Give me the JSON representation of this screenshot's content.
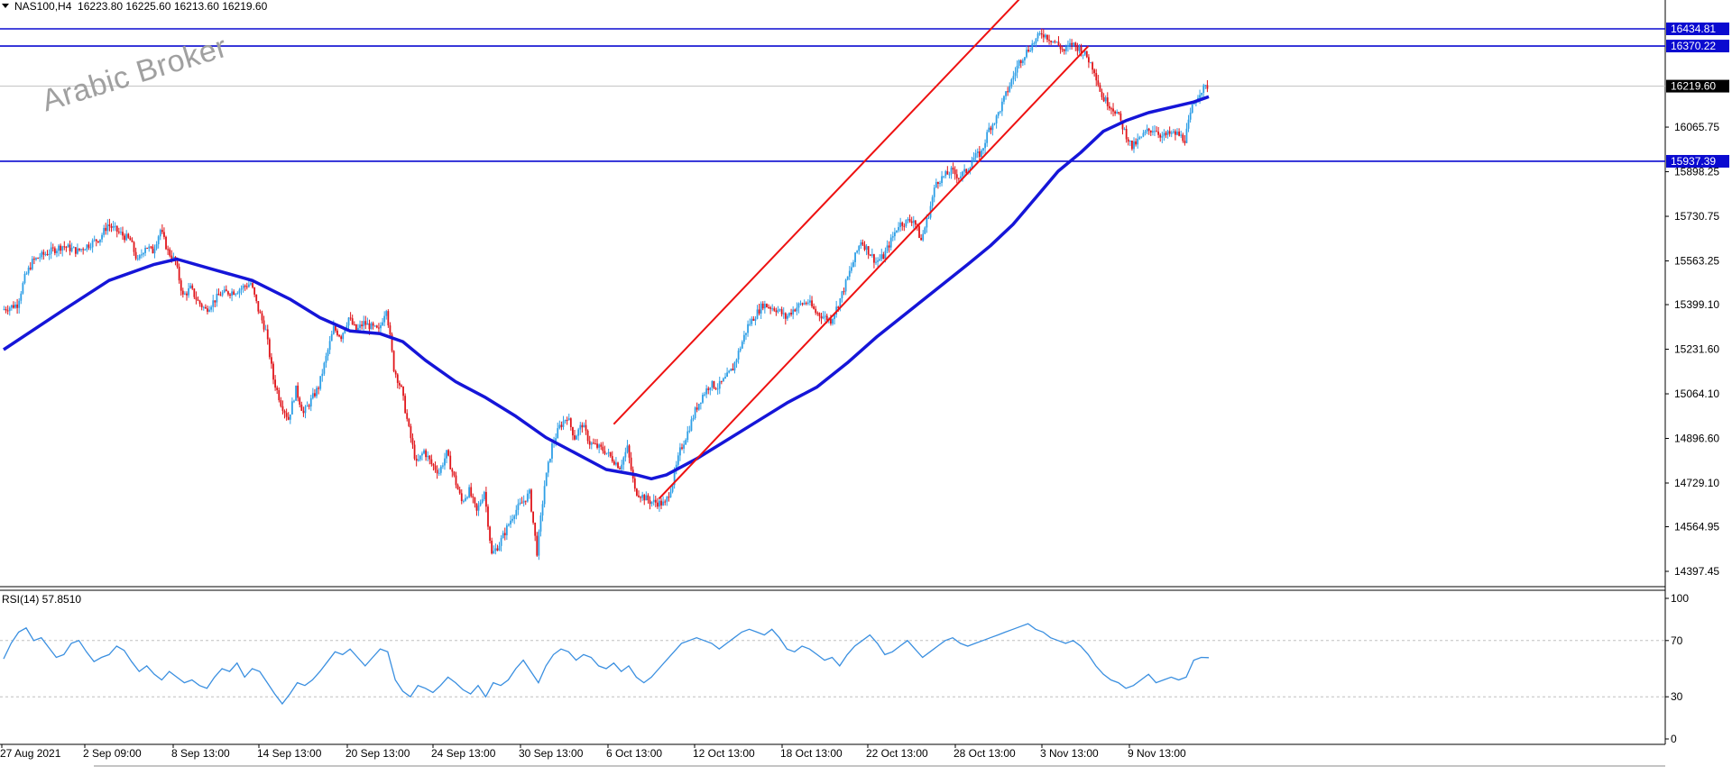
{
  "header": {
    "symbol": "NAS100,H4",
    "ohlc": "16223.80 16225.60 16213.60 16219.60"
  },
  "watermark": "Arabic Broker",
  "indicator": {
    "label": "RSI(14) 57.8510"
  },
  "colors": {
    "bull": "#2e9fe6",
    "bear": "#e0151a",
    "ma": "#1515d8",
    "channel": "#ee1111",
    "hline": "#0a0ad0",
    "rsi": "#3a8fe0"
  },
  "chart_data": [
    {
      "type": "candlestick",
      "symbol": "NAS100",
      "timeframe": "H4",
      "y_ticks": [
        16065.75,
        15898.25,
        15730.75,
        15563.25,
        15399.1,
        15231.6,
        15064.1,
        14896.6,
        14729.1,
        14564.95,
        14397.45
      ],
      "y_tick_labels": [
        "16065.75",
        "15898.25",
        "15730.75",
        "15563.25",
        "15399.10",
        "15231.60",
        "15064.10",
        "14896.60",
        "14729.10",
        "14564.95",
        "14397.45"
      ],
      "x_tick_labels": [
        "27 Aug 2021",
        "2 Sep 09:00",
        "8 Sep 13:00",
        "14 Sep 13:00",
        "20 Sep 13:00",
        "24 Sep 13:00",
        "30 Sep 13:00",
        "6 Oct 13:00",
        "12 Oct 13:00",
        "18 Oct 13:00",
        "22 Oct 13:00",
        "28 Oct 13:00",
        "3 Nov 13:00",
        "9 Nov 13:00"
      ],
      "price_path": [
        [
          0,
          15380
        ],
        [
          2,
          15400
        ],
        [
          3,
          15500
        ],
        [
          4,
          15560
        ],
        [
          5,
          15580
        ],
        [
          8,
          15620
        ],
        [
          10,
          15600
        ],
        [
          13,
          15650
        ],
        [
          14,
          15700
        ],
        [
          15,
          15680
        ],
        [
          17,
          15640
        ],
        [
          18,
          15560
        ],
        [
          19,
          15620
        ],
        [
          20,
          15600
        ],
        [
          21,
          15680
        ],
        [
          22,
          15600
        ],
        [
          23,
          15560
        ],
        [
          24,
          15430
        ],
        [
          25,
          15460
        ],
        [
          26,
          15410
        ],
        [
          27,
          15380
        ],
        [
          29,
          15440
        ],
        [
          31,
          15450
        ],
        [
          33,
          15480
        ],
        [
          34,
          15380
        ],
        [
          35,
          15300
        ],
        [
          36,
          15120
        ],
        [
          37,
          15030
        ],
        [
          38,
          14970
        ],
        [
          39,
          15080
        ],
        [
          40,
          14990
        ],
        [
          42,
          15090
        ],
        [
          43,
          15200
        ],
        [
          44,
          15310
        ],
        [
          45,
          15280
        ],
        [
          46,
          15350
        ],
        [
          47,
          15300
        ],
        [
          48,
          15330
        ],
        [
          50,
          15300
        ],
        [
          51,
          15390
        ],
        [
          52,
          15160
        ],
        [
          53,
          15080
        ],
        [
          54,
          14930
        ],
        [
          55,
          14800
        ],
        [
          56,
          14850
        ],
        [
          57,
          14800
        ],
        [
          58,
          14770
        ],
        [
          59,
          14840
        ],
        [
          60,
          14750
        ],
        [
          61,
          14660
        ],
        [
          62,
          14700
        ],
        [
          63,
          14620
        ],
        [
          64,
          14700
        ],
        [
          65,
          14460
        ],
        [
          66,
          14500
        ],
        [
          68,
          14620
        ],
        [
          70,
          14690
        ],
        [
          71,
          14470
        ],
        [
          72,
          14720
        ],
        [
          73,
          14870
        ],
        [
          74,
          14940
        ],
        [
          75,
          14980
        ],
        [
          76,
          14900
        ],
        [
          77,
          14950
        ],
        [
          78,
          14880
        ],
        [
          80,
          14850
        ],
        [
          82,
          14790
        ],
        [
          83,
          14860
        ],
        [
          84,
          14700
        ],
        [
          85,
          14680
        ],
        [
          86,
          14660
        ],
        [
          88,
          14650
        ],
        [
          89,
          14730
        ],
        [
          90,
          14850
        ],
        [
          91,
          14920
        ],
        [
          92,
          15000
        ],
        [
          93,
          15060
        ],
        [
          94,
          15100
        ],
        [
          95,
          15090
        ],
        [
          96,
          15120
        ],
        [
          97,
          15160
        ],
        [
          98,
          15240
        ],
        [
          99,
          15320
        ],
        [
          100,
          15360
        ],
        [
          101,
          15400
        ],
        [
          103,
          15380
        ],
        [
          104,
          15350
        ],
        [
          105,
          15380
        ],
        [
          106,
          15400
        ],
        [
          107,
          15410
        ],
        [
          108,
          15370
        ],
        [
          110,
          15340
        ],
        [
          111,
          15400
        ],
        [
          112,
          15480
        ],
        [
          113,
          15560
        ],
        [
          114,
          15640
        ],
        [
          115,
          15600
        ],
        [
          116,
          15560
        ],
        [
          117,
          15580
        ],
        [
          118,
          15640
        ],
        [
          119,
          15700
        ],
        [
          121,
          15720
        ],
        [
          122,
          15640
        ],
        [
          123,
          15740
        ],
        [
          124,
          15860
        ],
        [
          125,
          15880
        ],
        [
          126,
          15900
        ],
        [
          127,
          15880
        ],
        [
          128,
          15900
        ],
        [
          129,
          15950
        ],
        [
          130,
          15970
        ],
        [
          131,
          16060
        ],
        [
          132,
          16100
        ],
        [
          133,
          16170
        ],
        [
          134,
          16240
        ],
        [
          135,
          16310
        ],
        [
          136,
          16350
        ],
        [
          138,
          16420
        ],
        [
          139,
          16400
        ],
        [
          140,
          16380
        ],
        [
          141,
          16350
        ],
        [
          142,
          16380
        ],
        [
          143,
          16360
        ],
        [
          144,
          16330
        ],
        [
          145,
          16280
        ],
        [
          146,
          16180
        ],
        [
          147,
          16150
        ],
        [
          148,
          16120
        ],
        [
          149,
          16050
        ],
        [
          150,
          15990
        ],
        [
          151,
          16020
        ],
        [
          152,
          16050
        ],
        [
          153,
          16060
        ],
        [
          154,
          16030
        ],
        [
          155,
          16040
        ],
        [
          156,
          16040
        ],
        [
          157,
          16020
        ],
        [
          158,
          16140
        ],
        [
          159,
          16200
        ],
        [
          160,
          16219.6
        ]
      ],
      "moving_average": [
        [
          0,
          15230
        ],
        [
          8,
          15380
        ],
        [
          14,
          15490
        ],
        [
          20,
          15550
        ],
        [
          23,
          15570
        ],
        [
          28,
          15530
        ],
        [
          33,
          15490
        ],
        [
          38,
          15420
        ],
        [
          42,
          15350
        ],
        [
          46,
          15300
        ],
        [
          50,
          15290
        ],
        [
          53,
          15260
        ],
        [
          56,
          15190
        ],
        [
          60,
          15110
        ],
        [
          64,
          15050
        ],
        [
          68,
          14980
        ],
        [
          72,
          14900
        ],
        [
          76,
          14840
        ],
        [
          80,
          14780
        ],
        [
          84,
          14760
        ],
        [
          86,
          14745
        ],
        [
          88,
          14760
        ],
        [
          92,
          14820
        ],
        [
          96,
          14890
        ],
        [
          100,
          14960
        ],
        [
          104,
          15030
        ],
        [
          108,
          15090
        ],
        [
          112,
          15180
        ],
        [
          116,
          15280
        ],
        [
          120,
          15370
        ],
        [
          124,
          15460
        ],
        [
          128,
          15550
        ],
        [
          131,
          15620
        ],
        [
          134,
          15700
        ],
        [
          137,
          15800
        ],
        [
          140,
          15900
        ],
        [
          143,
          15970
        ],
        [
          146,
          16050
        ],
        [
          149,
          16090
        ],
        [
          152,
          16120
        ],
        [
          155,
          16140
        ],
        [
          158,
          16160
        ],
        [
          160,
          16180
        ]
      ],
      "horizontal_levels": [
        {
          "value": 16434.81,
          "label": "16434.81"
        },
        {
          "value": 16370.22,
          "label": "16370.22"
        },
        {
          "value": 15937.39,
          "label": "15937.39"
        }
      ],
      "current_price": {
        "value": 16219.6,
        "label": "16219.60"
      },
      "channel_lines": [
        {
          "from": [
            87,
            14670
          ],
          "to": [
            144,
            16370
          ]
        },
        {
          "from": [
            81,
            14950
          ],
          "to": [
            137,
            16610
          ]
        }
      ]
    },
    {
      "type": "line",
      "name": "RSI(14)",
      "last_value": 57.851,
      "y_ticks": [
        0,
        30,
        70,
        100
      ],
      "ylim": [
        0,
        100
      ],
      "levels": [
        30,
        70
      ],
      "values": [
        [
          0,
          57
        ],
        [
          1,
          68
        ],
        [
          2,
          76
        ],
        [
          3,
          79
        ],
        [
          4,
          70
        ],
        [
          5,
          72
        ],
        [
          6,
          65
        ],
        [
          7,
          58
        ],
        [
          8,
          60
        ],
        [
          9,
          68
        ],
        [
          10,
          70
        ],
        [
          11,
          62
        ],
        [
          12,
          55
        ],
        [
          13,
          58
        ],
        [
          14,
          60
        ],
        [
          15,
          66
        ],
        [
          16,
          63
        ],
        [
          17,
          55
        ],
        [
          18,
          48
        ],
        [
          19,
          52
        ],
        [
          20,
          46
        ],
        [
          21,
          42
        ],
        [
          22,
          48
        ],
        [
          23,
          44
        ],
        [
          24,
          40
        ],
        [
          25,
          42
        ],
        [
          26,
          38
        ],
        [
          27,
          36
        ],
        [
          28,
          44
        ],
        [
          29,
          50
        ],
        [
          30,
          48
        ],
        [
          31,
          54
        ],
        [
          32,
          44
        ],
        [
          33,
          50
        ],
        [
          34,
          48
        ],
        [
          35,
          40
        ],
        [
          36,
          32
        ],
        [
          37,
          25
        ],
        [
          38,
          32
        ],
        [
          39,
          40
        ],
        [
          40,
          38
        ],
        [
          41,
          42
        ],
        [
          42,
          48
        ],
        [
          43,
          55
        ],
        [
          44,
          62
        ],
        [
          45,
          60
        ],
        [
          46,
          64
        ],
        [
          47,
          58
        ],
        [
          48,
          52
        ],
        [
          49,
          58
        ],
        [
          50,
          64
        ],
        [
          51,
          62
        ],
        [
          52,
          42
        ],
        [
          53,
          34
        ],
        [
          54,
          30
        ],
        [
          55,
          38
        ],
        [
          56,
          36
        ],
        [
          57,
          33
        ],
        [
          58,
          38
        ],
        [
          59,
          44
        ],
        [
          60,
          40
        ],
        [
          61,
          35
        ],
        [
          62,
          32
        ],
        [
          63,
          38
        ],
        [
          64,
          30
        ],
        [
          65,
          40
        ],
        [
          66,
          38
        ],
        [
          67,
          42
        ],
        [
          68,
          50
        ],
        [
          69,
          56
        ],
        [
          70,
          48
        ],
        [
          71,
          40
        ],
        [
          72,
          52
        ],
        [
          73,
          60
        ],
        [
          74,
          64
        ],
        [
          75,
          62
        ],
        [
          76,
          56
        ],
        [
          77,
          60
        ],
        [
          78,
          58
        ],
        [
          79,
          52
        ],
        [
          80,
          50
        ],
        [
          81,
          54
        ],
        [
          82,
          48
        ],
        [
          83,
          52
        ],
        [
          84,
          44
        ],
        [
          85,
          40
        ],
        [
          86,
          44
        ],
        [
          87,
          50
        ],
        [
          88,
          56
        ],
        [
          89,
          62
        ],
        [
          90,
          68
        ],
        [
          91,
          70
        ],
        [
          92,
          72
        ],
        [
          93,
          70
        ],
        [
          94,
          68
        ],
        [
          95,
          64
        ],
        [
          96,
          68
        ],
        [
          97,
          72
        ],
        [
          98,
          76
        ],
        [
          99,
          78
        ],
        [
          100,
          76
        ],
        [
          101,
          74
        ],
        [
          102,
          78
        ],
        [
          103,
          72
        ],
        [
          104,
          64
        ],
        [
          105,
          62
        ],
        [
          106,
          66
        ],
        [
          107,
          64
        ],
        [
          108,
          60
        ],
        [
          109,
          56
        ],
        [
          110,
          58
        ],
        [
          111,
          52
        ],
        [
          112,
          60
        ],
        [
          113,
          66
        ],
        [
          114,
          70
        ],
        [
          115,
          74
        ],
        [
          116,
          68
        ],
        [
          117,
          60
        ],
        [
          118,
          62
        ],
        [
          119,
          66
        ],
        [
          120,
          70
        ],
        [
          121,
          64
        ],
        [
          122,
          58
        ],
        [
          123,
          62
        ],
        [
          124,
          66
        ],
        [
          125,
          70
        ],
        [
          126,
          72
        ],
        [
          127,
          68
        ],
        [
          128,
          66
        ],
        [
          129,
          68
        ],
        [
          130,
          70
        ],
        [
          131,
          72
        ],
        [
          132,
          74
        ],
        [
          133,
          76
        ],
        [
          134,
          78
        ],
        [
          135,
          80
        ],
        [
          136,
          82
        ],
        [
          137,
          78
        ],
        [
          138,
          76
        ],
        [
          139,
          72
        ],
        [
          140,
          70
        ],
        [
          141,
          68
        ],
        [
          142,
          70
        ],
        [
          143,
          66
        ],
        [
          144,
          60
        ],
        [
          145,
          52
        ],
        [
          146,
          46
        ],
        [
          147,
          42
        ],
        [
          148,
          40
        ],
        [
          149,
          36
        ],
        [
          150,
          38
        ],
        [
          151,
          42
        ],
        [
          152,
          46
        ],
        [
          153,
          40
        ],
        [
          154,
          42
        ],
        [
          155,
          44
        ],
        [
          156,
          42
        ],
        [
          157,
          44
        ],
        [
          158,
          56
        ],
        [
          159,
          58
        ],
        [
          160,
          57.85
        ]
      ]
    }
  ]
}
